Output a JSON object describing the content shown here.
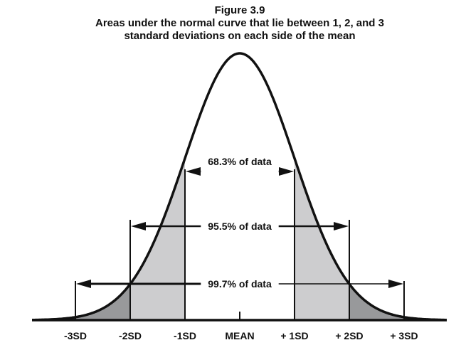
{
  "figure": {
    "number": "Figure 3.9",
    "title_line1": "Areas under the normal curve that lie between 1, 2, and 3",
    "title_line2": "standard deviations on each side of the mean"
  },
  "axis": {
    "tick_labels": [
      "-3SD",
      "-2SD",
      "-1SD",
      "MEAN",
      "+ 1SD",
      "+ 2SD",
      "+ 3SD"
    ],
    "sd_values": [
      -3,
      -2,
      -1,
      0,
      1,
      2,
      3
    ]
  },
  "ranges": [
    {
      "sd": 1,
      "label": "68.3% of data"
    },
    {
      "sd": 2,
      "label": "95.5% of data"
    },
    {
      "sd": 3,
      "label": "99.7% of data"
    }
  ],
  "colors": {
    "band_1_to_2": "#cdcdcf",
    "band_2_to_3": "#98999b",
    "tail_beyond_3": "#3a3d3f",
    "line": "#111111"
  }
}
